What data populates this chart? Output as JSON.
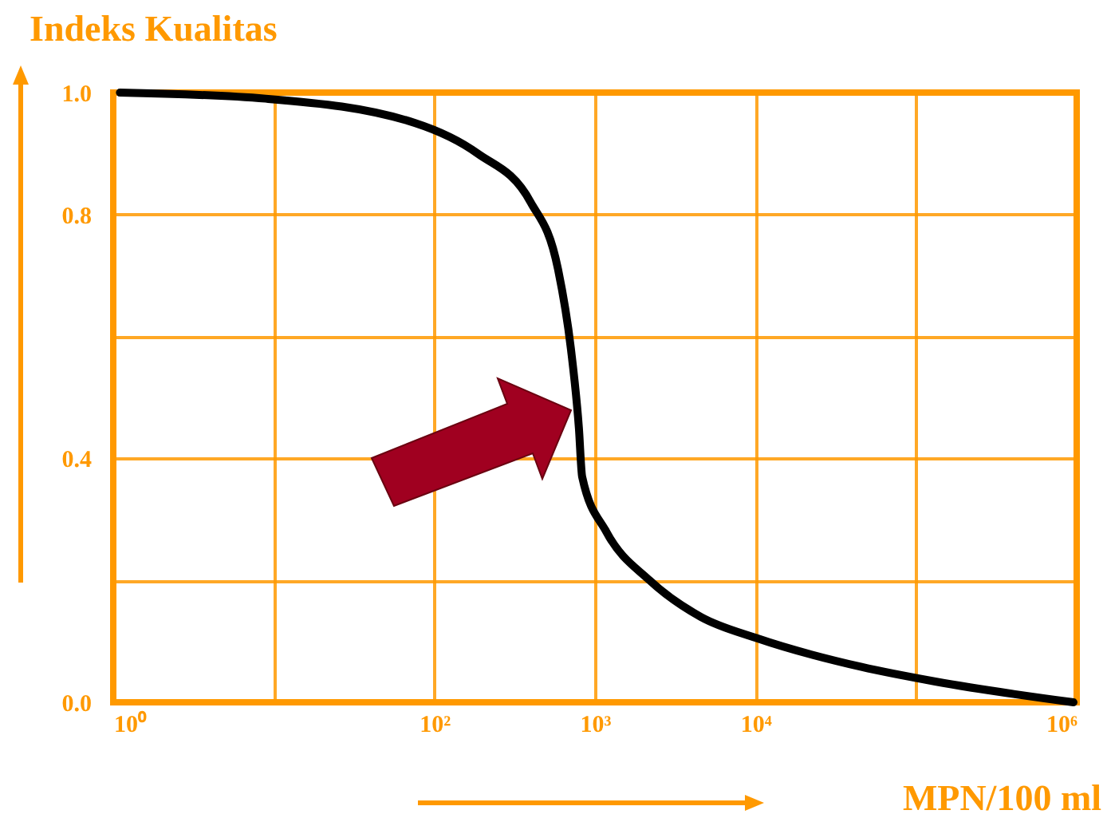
{
  "chart_data": {
    "type": "line",
    "xlabel": "MPN/100 ml",
    "ylabel": "Indeks Kualitas",
    "xlim": [
      1,
      1000000
    ],
    "ylim": [
      0,
      1
    ],
    "log": "x",
    "xticks": [
      {
        "value": 1,
        "label": "10⁰"
      },
      {
        "value": 10,
        "label": null
      },
      {
        "value": 100,
        "label": "10²"
      },
      {
        "value": 1000,
        "label": "10³"
      },
      {
        "value": 10000,
        "label": "10⁴"
      },
      {
        "value": 100000,
        "label": null
      },
      {
        "value": 1000000,
        "label": "10⁶"
      }
    ],
    "yticks": [
      {
        "value": 0,
        "label": "0.0"
      },
      {
        "value": 0.2,
        "label": null
      },
      {
        "value": 0.4,
        "label": "0.4"
      },
      {
        "value": 0.6,
        "label": null
      },
      {
        "value": 0.8,
        "label": "0.8"
      },
      {
        "value": 1,
        "label": "1.0"
      }
    ],
    "grid": true,
    "series": [
      {
        "color": "#000000",
        "x": [
          1.1,
          8.9,
          76,
          186,
          398,
          589,
          708,
          794,
          832,
          1175,
          2188,
          4571,
          10230,
          45700,
          131800,
          955000
        ],
        "values": [
          1.0,
          0.99,
          0.95,
          0.9,
          0.82,
          0.71,
          0.58,
          0.45,
          0.37,
          0.28,
          0.2,
          0.14,
          0.105,
          0.058,
          0.034,
          0.0
        ]
      }
    ]
  }
}
